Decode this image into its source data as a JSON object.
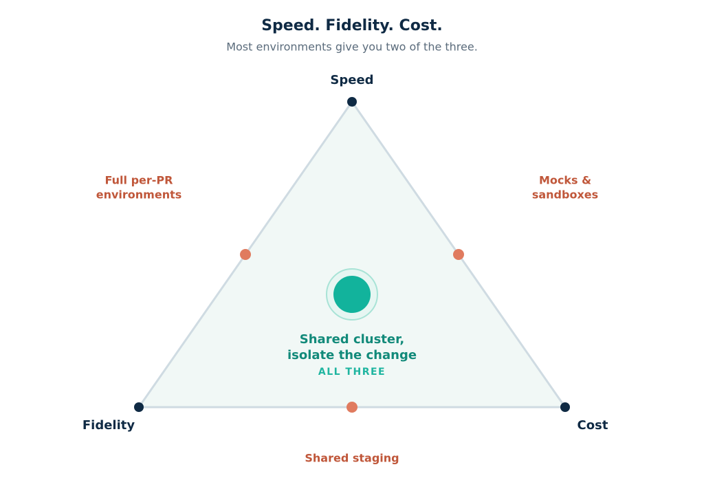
{
  "header": {
    "title": "Speed. Fidelity. Cost.",
    "subtitle": "Most environments give you two of the three."
  },
  "vertices": [
    {
      "label": "Speed"
    },
    {
      "label": "Fidelity"
    },
    {
      "label": "Cost"
    }
  ],
  "edges": [
    {
      "lines": [
        "Full per-PR",
        "environments"
      ]
    },
    {
      "lines": [
        "Mocks &",
        "sandboxes"
      ]
    },
    {
      "lines": [
        "Shared staging"
      ]
    }
  ],
  "center": {
    "lines": [
      "Shared cluster,",
      "isolate the change"
    ],
    "tag": "ALL THREE"
  }
}
